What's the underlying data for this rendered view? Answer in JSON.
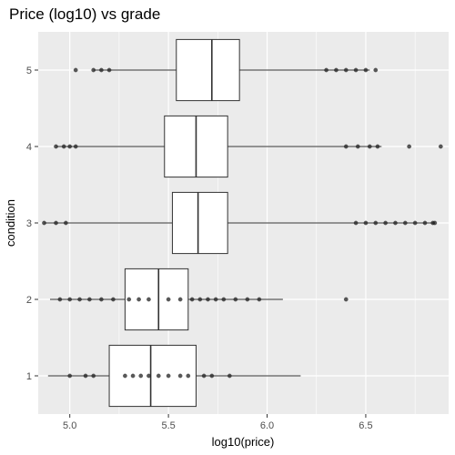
{
  "chart_data": {
    "type": "boxplot",
    "orientation": "horizontal",
    "title": "Price (log10) vs grade",
    "xlabel": "log10(price)",
    "ylabel": "condition",
    "xlim": [
      4.84,
      6.92
    ],
    "x_ticks": [
      5.0,
      5.5,
      6.0,
      6.5
    ],
    "x_tick_labels": [
      "5.0",
      "5.5",
      "6.0",
      "6.5"
    ],
    "categories": [
      "1",
      "2",
      "3",
      "4",
      "5"
    ],
    "grid": true,
    "background": "#ebebeb",
    "boxes": [
      {
        "category": "1",
        "whisker_low": 4.89,
        "q1": 5.2,
        "median": 5.41,
        "q3": 5.64,
        "whisker_high": 6.17,
        "outliers": [
          5.0,
          5.08,
          5.12,
          5.28,
          5.32,
          5.36,
          5.4,
          5.45,
          5.5,
          5.56,
          5.6,
          5.68,
          5.72,
          5.81
        ]
      },
      {
        "category": "2",
        "whisker_low": 4.9,
        "q1": 5.28,
        "median": 5.45,
        "q3": 5.6,
        "whisker_high": 6.08,
        "outliers": [
          4.95,
          5.0,
          5.05,
          5.1,
          5.16,
          5.22,
          5.3,
          5.35,
          5.4,
          5.5,
          5.56,
          5.62,
          5.66,
          5.7,
          5.74,
          5.78,
          5.84,
          5.9,
          5.96,
          6.4
        ]
      },
      {
        "category": "3",
        "whisker_low": 4.87,
        "q1": 5.52,
        "median": 5.65,
        "q3": 5.8,
        "whisker_high": 6.85,
        "outliers": [
          4.87,
          4.93,
          4.98,
          6.45,
          6.5,
          6.55,
          6.6,
          6.65,
          6.7,
          6.75,
          6.8,
          6.84,
          6.85
        ]
      },
      {
        "category": "4",
        "whisker_low": 4.93,
        "q1": 5.48,
        "median": 5.64,
        "q3": 5.8,
        "whisker_high": 6.58,
        "outliers": [
          4.93,
          4.97,
          5.0,
          5.03,
          6.4,
          6.46,
          6.52,
          6.56,
          6.72,
          6.88
        ]
      },
      {
        "category": "5",
        "whisker_low": 5.12,
        "q1": 5.54,
        "median": 5.72,
        "q3": 5.86,
        "whisker_high": 6.52,
        "outliers": [
          5.03,
          5.12,
          5.16,
          5.2,
          6.3,
          6.35,
          6.4,
          6.45,
          6.5,
          6.55
        ]
      }
    ]
  }
}
